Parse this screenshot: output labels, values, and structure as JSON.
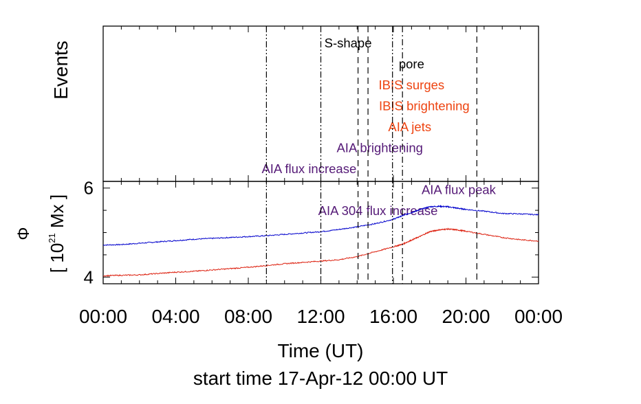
{
  "chart_data": [
    {
      "type": "annotation",
      "ylabel": "Events",
      "annotations": [
        {
          "text": "S-shape",
          "x": 13.5,
          "color": "#000000"
        },
        {
          "text": "pore",
          "x": 17.0,
          "color": "#000000"
        },
        {
          "text": "IBIS surges",
          "x": 17.0,
          "color": "#ee4411"
        },
        {
          "text": "IBIS brightening",
          "x": 17.7,
          "color": "#ee4411"
        },
        {
          "text": "AIA jets",
          "x": 16.9,
          "color": "#ee4411"
        },
        {
          "text": "AIA brightening",
          "x": 15.25,
          "color": "#551a77"
        },
        {
          "text": "AIA flux increase",
          "x": 11.35,
          "color": "#551a77"
        },
        {
          "text": "AIA flux peak",
          "x": 19.6,
          "color": "#551a77"
        },
        {
          "text": "AIA 304 flux increase",
          "x": 15.15,
          "color": "#551a77"
        }
      ]
    },
    {
      "type": "line",
      "ylabel": "Φ",
      "ylabel_unit_open": "[ 10",
      "ylabel_unit_exp": "21",
      "ylabel_unit_close": " Mx ]",
      "ytick_labels": [
        "4",
        "6"
      ],
      "yticks": [
        4,
        6
      ],
      "ylim": [
        3.85,
        6.15
      ],
      "xlim": [
        0,
        24
      ],
      "xticks": [
        0,
        4,
        8,
        12,
        16,
        20,
        24
      ],
      "xtick_labels": [
        "00:00",
        "04:00",
        "08:00",
        "12:00",
        "16:00",
        "20:00",
        "00:00"
      ],
      "xlabel": "Time (UT)",
      "subtitle": "start time 17-Apr-12 00:00 UT",
      "series": [
        {
          "color": "#0000cc",
          "x": [
            0,
            1,
            2,
            3,
            4,
            5,
            6,
            7,
            8,
            9,
            10,
            11,
            12,
            13,
            14,
            15,
            16,
            16.5,
            17,
            17.5,
            18,
            18.5,
            19,
            19.5,
            20,
            21,
            22,
            23,
            24
          ],
          "y": [
            4.72,
            4.73,
            4.76,
            4.79,
            4.82,
            4.85,
            4.87,
            4.89,
            4.91,
            4.93,
            4.96,
            4.99,
            5.02,
            5.07,
            5.13,
            5.2,
            5.3,
            5.38,
            5.45,
            5.52,
            5.58,
            5.59,
            5.58,
            5.55,
            5.52,
            5.48,
            5.43,
            5.42,
            5.4
          ]
        },
        {
          "color": "#dd2211",
          "x": [
            0,
            1,
            2,
            3,
            4,
            5,
            6,
            7,
            8,
            9,
            10,
            11,
            12,
            13,
            14,
            15,
            16,
            16.5,
            17,
            17.5,
            18,
            18.5,
            19,
            19.5,
            20,
            21,
            22,
            23,
            24
          ],
          "y": [
            4.03,
            4.04,
            4.05,
            4.08,
            4.11,
            4.13,
            4.16,
            4.19,
            4.22,
            4.26,
            4.3,
            4.33,
            4.36,
            4.39,
            4.46,
            4.57,
            4.68,
            4.74,
            4.83,
            4.92,
            5.02,
            5.06,
            5.08,
            5.06,
            5.03,
            4.96,
            4.89,
            4.84,
            4.81
          ]
        }
      ]
    }
  ],
  "event_lines": [
    {
      "x": 9.0,
      "style": "dashdotdot"
    },
    {
      "x": 12.0,
      "style": "dashdotdot"
    },
    {
      "x": 14.05,
      "style": "dash"
    },
    {
      "x": 14.6,
      "style": "dash"
    },
    {
      "x": 15.95,
      "style": "dashdotdot"
    },
    {
      "x": 16.5,
      "style": "dashdot"
    },
    {
      "x": 20.6,
      "style": "dash"
    }
  ]
}
